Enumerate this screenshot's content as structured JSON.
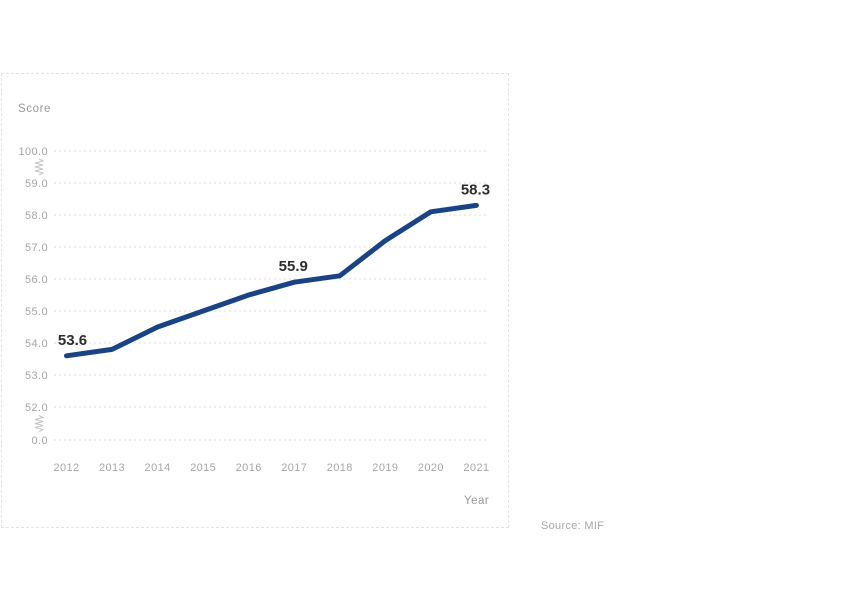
{
  "panel": {
    "y_axis_title": "Score",
    "x_axis_title": "Year",
    "source": "Source: MIF"
  },
  "chart_data": {
    "type": "line",
    "title": "",
    "xlabel": "Year",
    "ylabel": "Score",
    "categories": [
      "2012",
      "2013",
      "2014",
      "2015",
      "2016",
      "2017",
      "2018",
      "2019",
      "2020",
      "2021"
    ],
    "values": [
      53.6,
      53.8,
      54.5,
      55.0,
      55.5,
      55.9,
      56.1,
      57.2,
      58.1,
      58.3
    ],
    "labeled_points": [
      {
        "category": "2012",
        "label": "53.6"
      },
      {
        "category": "2017",
        "label": "55.9"
      },
      {
        "category": "2021",
        "label": "58.3"
      }
    ],
    "y_ticks": [
      "100.0",
      "59.0",
      "58.0",
      "57.0",
      "56.0",
      "55.0",
      "54.0",
      "53.0",
      "52.0",
      "0.0"
    ],
    "axis_break": true,
    "ylim_visible": [
      52.0,
      59.0
    ],
    "line_color": "#1a4383",
    "grid_color": "#dcdcdc",
    "tick_color": "#a6a6a6",
    "data_label_color": "#2e2e2e",
    "grid": "horizontal-dashed",
    "legend": "none"
  }
}
